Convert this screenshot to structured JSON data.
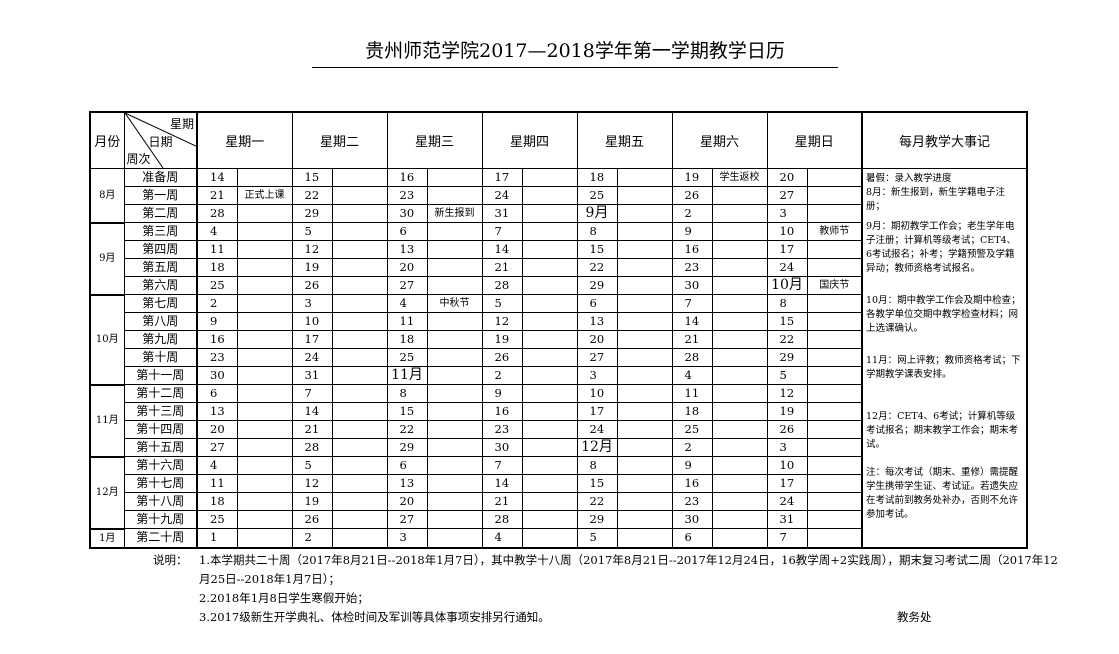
{
  "title": "贵州师范学院2017—2018学年第一学期教学日历",
  "header": {
    "month": "月份",
    "diag_weekday": "星期",
    "diag_date": "日期",
    "diag_week": "周次",
    "weekdays": [
      "星期一",
      "星期二",
      "星期三",
      "星期四",
      "星期五",
      "星期六",
      "星期日"
    ],
    "events": "每月教学大事记"
  },
  "rows": [
    {
      "week": "准备周",
      "month": "8月",
      "span": 3,
      "days": [
        [
          "14",
          ""
        ],
        [
          "15",
          ""
        ],
        [
          "16",
          ""
        ],
        [
          "17",
          ""
        ],
        [
          "18",
          ""
        ],
        [
          "19",
          "学生返校"
        ],
        [
          "20",
          ""
        ]
      ]
    },
    {
      "week": "第一周",
      "days": [
        [
          "21",
          "正式上课"
        ],
        [
          "22",
          ""
        ],
        [
          "23",
          ""
        ],
        [
          "24",
          ""
        ],
        [
          "25",
          ""
        ],
        [
          "26",
          ""
        ],
        [
          "27",
          ""
        ]
      ]
    },
    {
      "week": "第二周",
      "days": [
        [
          "28",
          ""
        ],
        [
          "29",
          ""
        ],
        [
          "30",
          "新生报到"
        ],
        [
          "31",
          ""
        ],
        [
          "9月",
          ""
        ],
        [
          "2",
          ""
        ],
        [
          "3",
          ""
        ]
      ]
    },
    {
      "week": "第三周",
      "month": "9月",
      "span": 4,
      "days": [
        [
          "4",
          ""
        ],
        [
          "5",
          ""
        ],
        [
          "6",
          ""
        ],
        [
          "7",
          ""
        ],
        [
          "8",
          ""
        ],
        [
          "9",
          ""
        ],
        [
          "10",
          "教师节"
        ]
      ]
    },
    {
      "week": "第四周",
      "days": [
        [
          "11",
          ""
        ],
        [
          "12",
          ""
        ],
        [
          "13",
          ""
        ],
        [
          "14",
          ""
        ],
        [
          "15",
          ""
        ],
        [
          "16",
          ""
        ],
        [
          "17",
          ""
        ]
      ]
    },
    {
      "week": "第五周",
      "days": [
        [
          "18",
          ""
        ],
        [
          "19",
          ""
        ],
        [
          "20",
          ""
        ],
        [
          "21",
          ""
        ],
        [
          "22",
          ""
        ],
        [
          "23",
          ""
        ],
        [
          "24",
          ""
        ]
      ]
    },
    {
      "week": "第六周",
      "days": [
        [
          "25",
          ""
        ],
        [
          "26",
          ""
        ],
        [
          "27",
          ""
        ],
        [
          "28",
          ""
        ],
        [
          "29",
          ""
        ],
        [
          "30",
          ""
        ],
        [
          "10月",
          "国庆节"
        ]
      ]
    },
    {
      "week": "第七周",
      "month": "10月",
      "span": 5,
      "days": [
        [
          "2",
          ""
        ],
        [
          "3",
          ""
        ],
        [
          "4",
          "中秋节"
        ],
        [
          "5",
          ""
        ],
        [
          "6",
          ""
        ],
        [
          "7",
          ""
        ],
        [
          "8",
          ""
        ]
      ]
    },
    {
      "week": "第八周",
      "days": [
        [
          "9",
          ""
        ],
        [
          "10",
          ""
        ],
        [
          "11",
          ""
        ],
        [
          "12",
          ""
        ],
        [
          "13",
          ""
        ],
        [
          "14",
          ""
        ],
        [
          "15",
          ""
        ]
      ]
    },
    {
      "week": "第九周",
      "days": [
        [
          "16",
          ""
        ],
        [
          "17",
          ""
        ],
        [
          "18",
          ""
        ],
        [
          "19",
          ""
        ],
        [
          "20",
          ""
        ],
        [
          "21",
          ""
        ],
        [
          "22",
          ""
        ]
      ]
    },
    {
      "week": "第十周",
      "days": [
        [
          "23",
          ""
        ],
        [
          "24",
          ""
        ],
        [
          "25",
          ""
        ],
        [
          "26",
          ""
        ],
        [
          "27",
          ""
        ],
        [
          "28",
          ""
        ],
        [
          "29",
          ""
        ]
      ]
    },
    {
      "week": "第十一周",
      "days": [
        [
          "30",
          ""
        ],
        [
          "31",
          ""
        ],
        [
          "11月",
          ""
        ],
        [
          "2",
          ""
        ],
        [
          "3",
          ""
        ],
        [
          "4",
          ""
        ],
        [
          "5",
          ""
        ]
      ]
    },
    {
      "week": "第十二周",
      "month": "11月",
      "span": 4,
      "days": [
        [
          "6",
          ""
        ],
        [
          "7",
          ""
        ],
        [
          "8",
          ""
        ],
        [
          "9",
          ""
        ],
        [
          "10",
          ""
        ],
        [
          "11",
          ""
        ],
        [
          "12",
          ""
        ]
      ]
    },
    {
      "week": "第十三周",
      "days": [
        [
          "13",
          ""
        ],
        [
          "14",
          ""
        ],
        [
          "15",
          ""
        ],
        [
          "16",
          ""
        ],
        [
          "17",
          ""
        ],
        [
          "18",
          ""
        ],
        [
          "19",
          ""
        ]
      ]
    },
    {
      "week": "第十四周",
      "days": [
        [
          "20",
          ""
        ],
        [
          "21",
          ""
        ],
        [
          "22",
          ""
        ],
        [
          "23",
          ""
        ],
        [
          "24",
          ""
        ],
        [
          "25",
          ""
        ],
        [
          "26",
          ""
        ]
      ]
    },
    {
      "week": "第十五周",
      "days": [
        [
          "27",
          ""
        ],
        [
          "28",
          ""
        ],
        [
          "29",
          ""
        ],
        [
          "30",
          ""
        ],
        [
          "12月",
          ""
        ],
        [
          "2",
          ""
        ],
        [
          "3",
          ""
        ]
      ]
    },
    {
      "week": "第十六周",
      "month": "12月",
      "span": 4,
      "days": [
        [
          "4",
          ""
        ],
        [
          "5",
          ""
        ],
        [
          "6",
          ""
        ],
        [
          "7",
          ""
        ],
        [
          "8",
          ""
        ],
        [
          "9",
          ""
        ],
        [
          "10",
          ""
        ]
      ]
    },
    {
      "week": "第十七周",
      "days": [
        [
          "11",
          ""
        ],
        [
          "12",
          ""
        ],
        [
          "13",
          ""
        ],
        [
          "14",
          ""
        ],
        [
          "15",
          ""
        ],
        [
          "16",
          ""
        ],
        [
          "17",
          ""
        ]
      ]
    },
    {
      "week": "第十八周",
      "days": [
        [
          "18",
          ""
        ],
        [
          "19",
          ""
        ],
        [
          "20",
          ""
        ],
        [
          "21",
          ""
        ],
        [
          "22",
          ""
        ],
        [
          "23",
          ""
        ],
        [
          "24",
          ""
        ]
      ]
    },
    {
      "week": "第十九周",
      "days": [
        [
          "25",
          ""
        ],
        [
          "26",
          ""
        ],
        [
          "27",
          ""
        ],
        [
          "28",
          ""
        ],
        [
          "29",
          ""
        ],
        [
          "30",
          ""
        ],
        [
          "31",
          ""
        ]
      ]
    },
    {
      "week": "第二十周",
      "month": "1月",
      "span": 1,
      "days": [
        [
          "1",
          ""
        ],
        [
          "2",
          ""
        ],
        [
          "3",
          ""
        ],
        [
          "4",
          ""
        ],
        [
          "5",
          ""
        ],
        [
          "6",
          ""
        ],
        [
          "7",
          ""
        ]
      ]
    }
  ],
  "events": [
    "暑假：录入教学进度\n8月：新生报到，新生学籍电子注册；",
    "9月：期初教学工作会；老生学年电子注册；计算机等级考试；CET4、6考试报名；补考；学籍预警及学籍异动；教师资格考试报名。",
    "10月：期中教学工作会及期中检查；各教学单位交期中教学检查材料；网上选课确认。",
    "11月：网上评教；教师资格考试；下学期教学课表安排。",
    "12月：CET4、6考试；计算机等级考试报名；期末教学工作会；期末考试。",
    "注：每次考试（期末、重修）需提醒学生携带学生证、考试证。若遗失应在考试前到教务处补办，否则不允许参加考试。"
  ],
  "notes": {
    "label": "说明：",
    "items": [
      "1.本学期共二十周（2017年8月21日--2018年1月7日），其中教学十八周（2017年8月21日--2017年12月24日，16教学周+2实践周），期末复习考试二周（2017年12月25日--2018年1月7日）；",
      "2.2018年1月8日学生寒假开始；",
      "3.2017级新生开学典礼、体检时间及军训等具体事项安排另行通知。"
    ],
    "office": "教务处"
  }
}
